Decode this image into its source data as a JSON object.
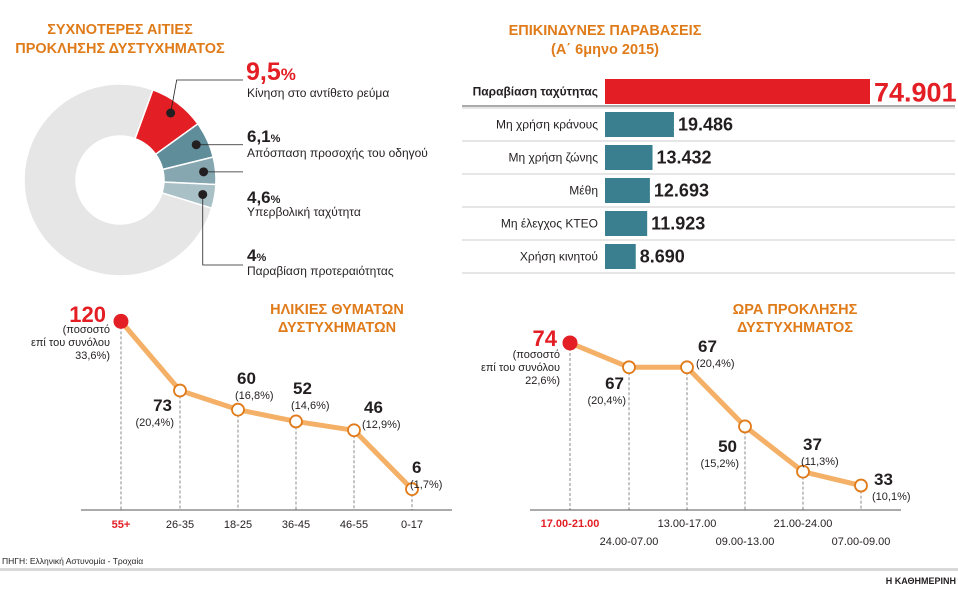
{
  "colors": {
    "accent": "#e07b1a",
    "red": "#e31e24",
    "teal": "#3a7f8f",
    "line": "#f4b067",
    "donut_gray": "#e6e6e7",
    "text": "#231f20"
  },
  "source": "ΠΗΓΗ: Ελληνική Αστυνομία - Τροχαία",
  "publisher": "Η ΚΑΘΗΜΕΡΙΝΗ",
  "chart_data": [
    {
      "type": "pie",
      "title_lines": [
        "ΣΥΧΝΟΤΕΡΕΣ ΑΙΤΙΕΣ",
        "ΠΡΟΚΛΗΣΗΣ ΔΥΣΤΥΧΗΜΑΤΟΣ"
      ],
      "slices": [
        {
          "num": "9,5",
          "pct": "%",
          "label": "Κίνηση στο αντίθετο ρεύμα",
          "value": 9.5,
          "color": "#e31e24"
        },
        {
          "num": "6,1",
          "pct": "%",
          "label": "Απόσπαση προσοχής του οδηγού",
          "value": 6.1,
          "color": "#5f8e9a"
        },
        {
          "num": "4,6",
          "pct": "%",
          "label": "Υπερβολική ταχύτητα",
          "value": 4.6,
          "color": "#86a7b0"
        },
        {
          "num": "4",
          "pct": "%",
          "label": "Παραβίαση προτεραιότητας",
          "value": 4.0,
          "color": "#a9c0c6"
        }
      ],
      "remainder_color": "#e6e6e7"
    },
    {
      "type": "bar",
      "orientation": "horizontal",
      "title_lines": [
        "ΕΠΙΚΙΝΔΥΝΕΣ ΠΑΡΑΒΑΣΕΙΣ",
        "(Α΄ 6μηνο 2015)"
      ],
      "categories": [
        "Παραβίαση ταχύτητας",
        "Μη χρήση κράνους",
        "Μη χρήση ζώνης",
        "Μέθη",
        "Μη έλεγχος ΚΤΕΟ",
        "Χρήση κινητού"
      ],
      "values": [
        74901,
        19486,
        13432,
        12693,
        11923,
        8690
      ],
      "value_labels": [
        "74.901",
        "19.486",
        "13.432",
        "12.693",
        "11.923",
        "8.690"
      ],
      "highlight_index": 0
    },
    {
      "type": "line",
      "title_lines": [
        "ΗΛΙΚΙΕΣ ΘΥΜΑΤΩΝ",
        "ΔΥΣΤΥΧΗΜΑΤΩΝ"
      ],
      "categories": [
        "55+",
        "26-35",
        "18-25",
        "36-45",
        "46-55",
        "0-17"
      ],
      "values": [
        120,
        73,
        60,
        52,
        46,
        6
      ],
      "pct_labels": [
        "",
        "(20,4%)",
        "(16,8%)",
        "(14,6%)",
        "(12,9%)",
        "(1,7%)"
      ],
      "first_note": [
        "(ποσοστό",
        "επί του συνόλου",
        "33,6%)"
      ],
      "ylim": [
        0,
        125
      ]
    },
    {
      "type": "line",
      "title_lines": [
        "ΩΡΑ ΠΡΟΚΛΗΣΗΣ",
        "ΔΥΣΤΥΧΗΜΑΤΟΣ"
      ],
      "categories": [
        "17.00-21.00",
        "24.00-07.00",
        "13.00-17.00",
        "09.00-13.00",
        "21.00-24.00",
        "07.00-09.00"
      ],
      "values": [
        74,
        67,
        67,
        50,
        37,
        33
      ],
      "pct_labels": [
        "",
        "(20,4%)",
        "(20,4%)",
        "(15,2%)",
        "(11,3%)",
        "(10,1%)"
      ],
      "first_note": [
        "(ποσοστό",
        "επί του συνόλου",
        "22,6%)"
      ],
      "ylim": [
        30,
        76
      ]
    }
  ]
}
